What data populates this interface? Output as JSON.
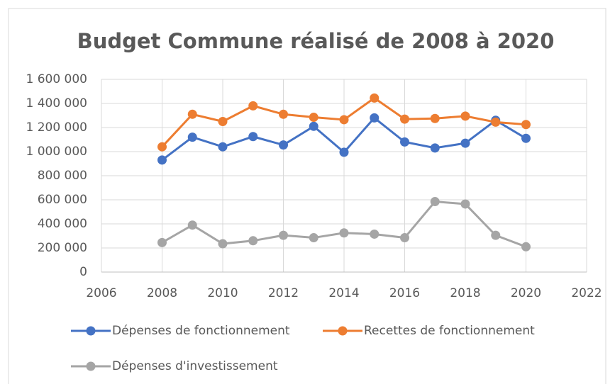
{
  "chart_data": {
    "type": "line",
    "title": "Budget Commune réalisé de 2008 à 2020",
    "x": [
      2008,
      2009,
      2010,
      2011,
      2012,
      2013,
      2014,
      2015,
      2016,
      2017,
      2018,
      2019,
      2020
    ],
    "series": [
      {
        "name": "Dépenses de fonctionnement",
        "color": "#4472c4",
        "values": [
          930000,
          1120000,
          1040000,
          1125000,
          1055000,
          1210000,
          995000,
          1280000,
          1080000,
          1030000,
          1070000,
          1260000,
          1110000
        ]
      },
      {
        "name": "Recettes de fonctionnement",
        "color": "#ed7d31",
        "values": [
          1040000,
          1310000,
          1250000,
          1380000,
          1310000,
          1285000,
          1265000,
          1445000,
          1270000,
          1275000,
          1295000,
          1245000,
          1225000
        ]
      },
      {
        "name": "Dépenses d'investissement",
        "color": "#a5a5a5",
        "values": [
          245000,
          390000,
          235000,
          260000,
          305000,
          285000,
          325000,
          315000,
          285000,
          585000,
          565000,
          305000,
          210000
        ]
      }
    ],
    "xlim": [
      2006,
      2022
    ],
    "xticks": [
      2006,
      2008,
      2010,
      2012,
      2014,
      2016,
      2018,
      2020,
      2022
    ],
    "ylim": [
      0,
      1600000
    ],
    "yticks": [
      0,
      {
        "value": 200000,
        "label": "200 000"
      },
      {
        "value": 400000,
        "label": "400 000"
      },
      {
        "value": 600000,
        "label": "600 000"
      },
      {
        "value": 800000,
        "label": "800 000"
      },
      {
        "value": 1000000,
        "label": "1 000 000"
      },
      {
        "value": 1200000,
        "label": "1 200 000"
      },
      {
        "value": 1400000,
        "label": "1 400 000"
      },
      {
        "value": 1600000,
        "label": "1 600 000"
      }
    ],
    "grid": true
  }
}
